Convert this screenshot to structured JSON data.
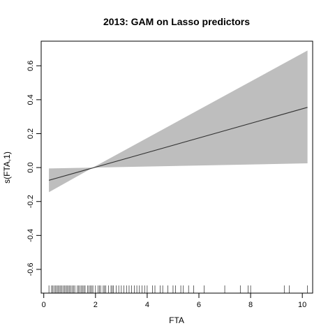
{
  "chart_data": {
    "type": "line",
    "title": "2013: GAM on Lasso predictors",
    "xlabel": "FTA",
    "ylabel": "s(FTA,1)",
    "xlim": [
      -0.1,
      10.4
    ],
    "ylim": [
      -0.74,
      0.745
    ],
    "x_ticks": [
      0,
      2,
      4,
      6,
      8,
      10
    ],
    "y_ticks": [
      -0.6,
      -0.4,
      -0.2,
      0.0,
      0.2,
      0.4,
      0.6
    ],
    "x_tick_labels": [
      "0",
      "2",
      "4",
      "6",
      "8",
      "10"
    ],
    "y_tick_labels": [
      "-0.6",
      "-0.4",
      "-0.2",
      "0.0",
      "0.2",
      "0.4",
      "0.6"
    ],
    "fit_line": {
      "x": [
        0.2,
        10.2
      ],
      "y": [
        -0.075,
        0.355
      ]
    },
    "confidence_band": {
      "x": [
        0.2,
        1.9,
        10.2
      ],
      "upper": [
        -0.005,
        0.0,
        0.69
      ],
      "lower": [
        -0.145,
        0.0,
        0.025
      ]
    },
    "rug": [
      0.2,
      0.3,
      0.35,
      0.4,
      0.45,
      0.5,
      0.55,
      0.6,
      0.65,
      0.7,
      0.75,
      0.8,
      0.85,
      0.9,
      0.95,
      1.0,
      1.05,
      1.1,
      1.15,
      1.2,
      1.3,
      1.35,
      1.4,
      1.45,
      1.5,
      1.55,
      1.6,
      1.7,
      1.75,
      1.8,
      1.85,
      1.9,
      2.0,
      2.1,
      2.15,
      2.2,
      2.3,
      2.35,
      2.4,
      2.5,
      2.6,
      2.65,
      2.7,
      2.8,
      2.9,
      3.0,
      3.1,
      3.2,
      3.3,
      3.4,
      3.5,
      3.6,
      3.7,
      3.8,
      3.9,
      4.0,
      4.2,
      4.3,
      4.5,
      4.6,
      4.8,
      5.0,
      5.1,
      5.3,
      5.4,
      5.6,
      5.8,
      6.2,
      7.0,
      7.6,
      7.9,
      8.0,
      9.3,
      9.5,
      10.2
    ],
    "colors": {
      "band": "#bebebe",
      "line": "#333333",
      "axis": "#000000"
    },
    "grid": false
  }
}
